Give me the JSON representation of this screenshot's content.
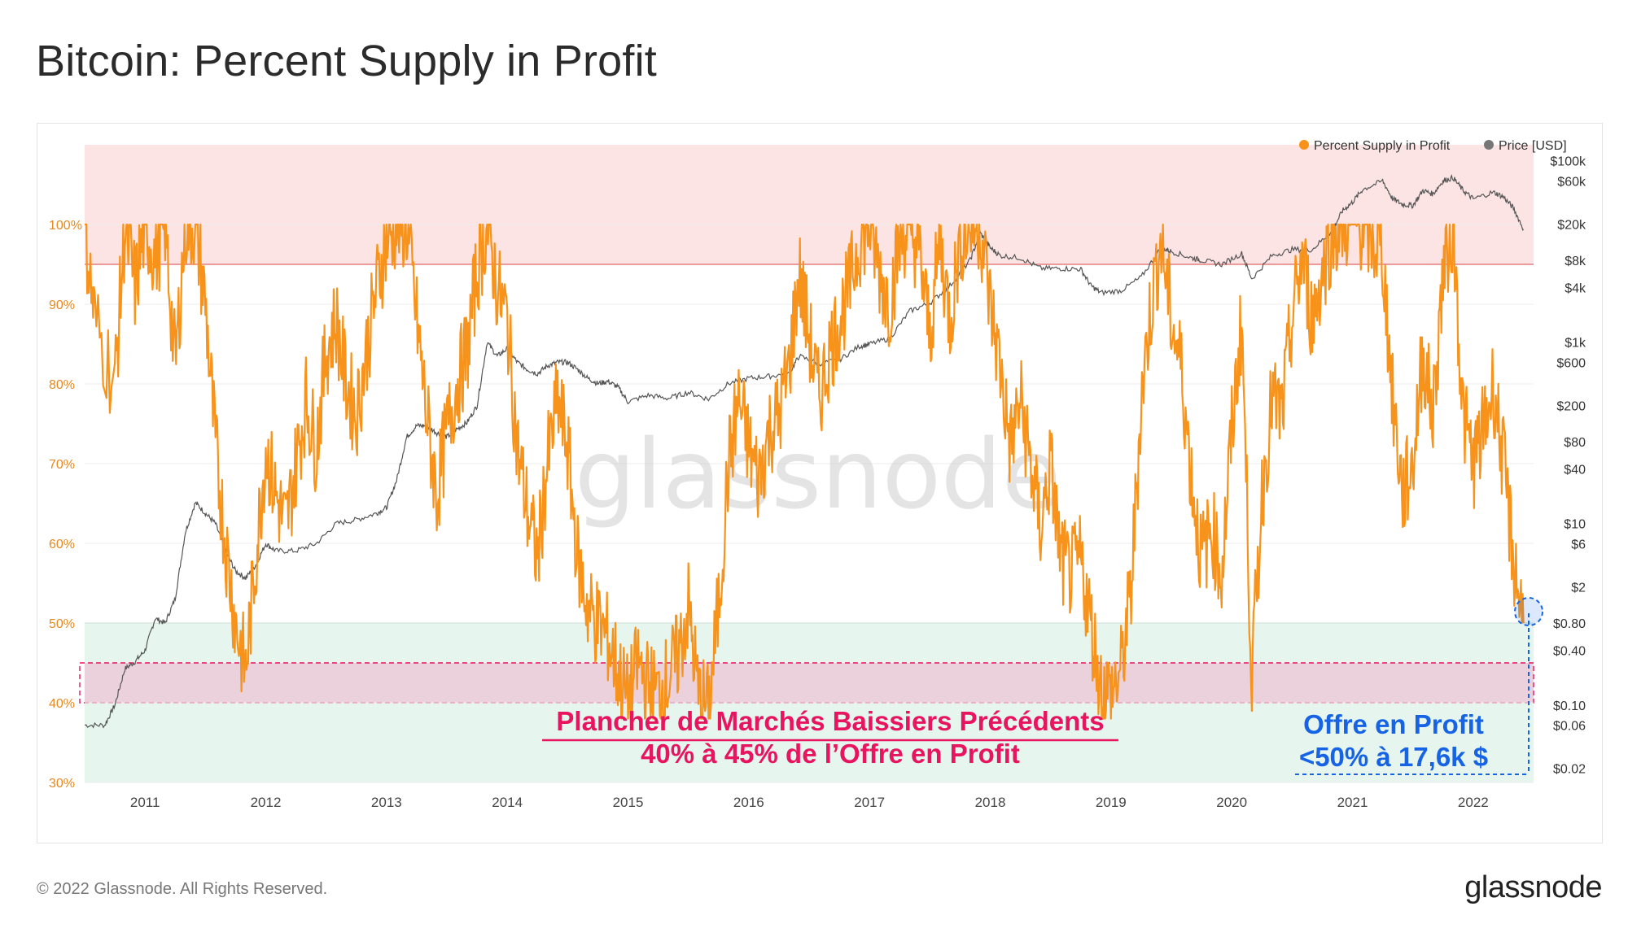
{
  "page": {
    "title": "Bitcoin: Percent Supply in Profit",
    "copyright": "© 2022 Glassnode. All Rights Reserved.",
    "brand": "glassnode",
    "watermark": "glassnode"
  },
  "chart_data": {
    "type": "line",
    "title": "Bitcoin: Percent Supply in Profit",
    "legend": {
      "placement": "top-right"
    },
    "series": [
      {
        "name": "Percent Supply in Profit",
        "color": "#f7931a",
        "axis": "left",
        "points": [
          [
            "2010-07",
            100
          ],
          [
            "2010-08",
            88
          ],
          [
            "2010-10",
            80
          ],
          [
            "2010-11",
            100
          ],
          [
            "2010-12",
            92
          ],
          [
            "2011-01",
            100
          ],
          [
            "2011-02",
            96
          ],
          [
            "2011-03",
            100
          ],
          [
            "2011-04",
            82
          ],
          [
            "2011-05",
            100
          ],
          [
            "2011-06",
            100
          ],
          [
            "2011-07",
            90
          ],
          [
            "2011-08",
            72
          ],
          [
            "2011-09",
            60
          ],
          [
            "2011-10",
            50
          ],
          [
            "2011-11",
            44
          ],
          [
            "2011-12",
            58
          ],
          [
            "2012-01",
            72
          ],
          [
            "2012-02",
            66
          ],
          [
            "2012-03",
            62
          ],
          [
            "2012-04",
            70
          ],
          [
            "2012-05",
            78
          ],
          [
            "2012-06",
            72
          ],
          [
            "2012-07",
            84
          ],
          [
            "2012-08",
            88
          ],
          [
            "2012-09",
            80
          ],
          [
            "2012-10",
            76
          ],
          [
            "2012-11",
            84
          ],
          [
            "2012-12",
            92
          ],
          [
            "2013-01",
            98
          ],
          [
            "2013-02",
            100
          ],
          [
            "2013-03",
            100
          ],
          [
            "2013-04",
            88
          ],
          [
            "2013-05",
            76
          ],
          [
            "2013-06",
            66
          ],
          [
            "2013-07",
            74
          ],
          [
            "2013-08",
            80
          ],
          [
            "2013-09",
            84
          ],
          [
            "2013-10",
            94
          ],
          [
            "2013-11",
            100
          ],
          [
            "2013-12",
            92
          ],
          [
            "2014-01",
            88
          ],
          [
            "2014-02",
            72
          ],
          [
            "2014-03",
            64
          ],
          [
            "2014-04",
            58
          ],
          [
            "2014-05",
            70
          ],
          [
            "2014-06",
            78
          ],
          [
            "2014-07",
            72
          ],
          [
            "2014-08",
            58
          ],
          [
            "2014-09",
            52
          ],
          [
            "2014-10",
            50
          ],
          [
            "2014-11",
            48
          ],
          [
            "2014-12",
            44
          ],
          [
            "2015-01",
            40
          ],
          [
            "2015-02",
            45
          ],
          [
            "2015-03",
            42
          ],
          [
            "2015-04",
            41
          ],
          [
            "2015-05",
            43
          ],
          [
            "2015-06",
            46
          ],
          [
            "2015-07",
            52
          ],
          [
            "2015-08",
            41
          ],
          [
            "2015-09",
            39
          ],
          [
            "2015-10",
            52
          ],
          [
            "2015-11",
            70
          ],
          [
            "2015-12",
            78
          ],
          [
            "2016-01",
            72
          ],
          [
            "2016-02",
            68
          ],
          [
            "2016-03",
            74
          ],
          [
            "2016-04",
            76
          ],
          [
            "2016-05",
            82
          ],
          [
            "2016-06",
            94
          ],
          [
            "2016-07",
            86
          ],
          [
            "2016-08",
            78
          ],
          [
            "2016-09",
            84
          ],
          [
            "2016-10",
            88
          ],
          [
            "2016-11",
            92
          ],
          [
            "2016-12",
            98
          ],
          [
            "2017-01",
            100
          ],
          [
            "2017-02",
            94
          ],
          [
            "2017-03",
            90
          ],
          [
            "2017-04",
            98
          ],
          [
            "2017-05",
            100
          ],
          [
            "2017-06",
            96
          ],
          [
            "2017-07",
            86
          ],
          [
            "2017-08",
            98
          ],
          [
            "2017-09",
            88
          ],
          [
            "2017-10",
            98
          ],
          [
            "2017-11",
            100
          ],
          [
            "2017-12",
            100
          ],
          [
            "2018-01",
            90
          ],
          [
            "2018-02",
            82
          ],
          [
            "2018-03",
            72
          ],
          [
            "2018-04",
            78
          ],
          [
            "2018-05",
            70
          ],
          [
            "2018-06",
            62
          ],
          [
            "2018-07",
            70
          ],
          [
            "2018-08",
            58
          ],
          [
            "2018-09",
            56
          ],
          [
            "2018-10",
            58
          ],
          [
            "2018-11",
            50
          ],
          [
            "2018-12",
            42
          ],
          [
            "2019-01",
            41
          ],
          [
            "2019-02",
            44
          ],
          [
            "2019-03",
            54
          ],
          [
            "2019-04",
            78
          ],
          [
            "2019-05",
            90
          ],
          [
            "2019-06",
            98
          ],
          [
            "2019-07",
            88
          ],
          [
            "2019-08",
            82
          ],
          [
            "2019-09",
            68
          ],
          [
            "2019-10",
            58
          ],
          [
            "2019-11",
            62
          ],
          [
            "2019-12",
            56
          ],
          [
            "2020-01",
            74
          ],
          [
            "2020-02",
            88
          ],
          [
            "2020-03",
            43
          ],
          [
            "2020-04",
            66
          ],
          [
            "2020-05",
            78
          ],
          [
            "2020-06",
            76
          ],
          [
            "2020-07",
            88
          ],
          [
            "2020-08",
            96
          ],
          [
            "2020-09",
            88
          ],
          [
            "2020-10",
            94
          ],
          [
            "2020-11",
            99
          ],
          [
            "2020-12",
            100
          ],
          [
            "2021-01",
            100
          ],
          [
            "2021-02",
            100
          ],
          [
            "2021-03",
            98
          ],
          [
            "2021-04",
            96
          ],
          [
            "2021-05",
            78
          ],
          [
            "2021-06",
            66
          ],
          [
            "2021-07",
            70
          ],
          [
            "2021-08",
            84
          ],
          [
            "2021-09",
            76
          ],
          [
            "2021-10",
            94
          ],
          [
            "2021-11",
            100
          ],
          [
            "2021-12",
            76
          ],
          [
            "2022-01",
            70
          ],
          [
            "2022-02",
            74
          ],
          [
            "2022-03",
            80
          ],
          [
            "2022-04",
            70
          ],
          [
            "2022-05",
            58
          ],
          [
            "2022-06",
            50
          ]
        ]
      },
      {
        "name": "Price [USD]",
        "color": "#555555",
        "axis": "right",
        "points": [
          [
            "2010-07",
            0.06
          ],
          [
            "2010-09",
            0.06
          ],
          [
            "2010-10",
            0.1
          ],
          [
            "2010-11",
            0.25
          ],
          [
            "2010-12",
            0.3
          ],
          [
            "2011-01",
            0.4
          ],
          [
            "2011-02",
            0.9
          ],
          [
            "2011-03",
            0.8
          ],
          [
            "2011-04",
            1.5
          ],
          [
            "2011-05",
            8
          ],
          [
            "2011-06",
            17
          ],
          [
            "2011-07",
            13
          ],
          [
            "2011-08",
            10
          ],
          [
            "2011-09",
            5
          ],
          [
            "2011-10",
            3
          ],
          [
            "2011-11",
            2.5
          ],
          [
            "2011-12",
            3.5
          ],
          [
            "2012-01",
            6
          ],
          [
            "2012-02",
            5
          ],
          [
            "2012-04",
            5
          ],
          [
            "2012-06",
            6
          ],
          [
            "2012-08",
            10
          ],
          [
            "2012-10",
            11
          ],
          [
            "2012-12",
            13
          ],
          [
            "2013-01",
            15
          ],
          [
            "2013-02",
            30
          ],
          [
            "2013-03",
            90
          ],
          [
            "2013-04",
            120
          ],
          [
            "2013-05",
            120
          ],
          [
            "2013-06",
            100
          ],
          [
            "2013-07",
            90
          ],
          [
            "2013-08",
            110
          ],
          [
            "2013-09",
            130
          ],
          [
            "2013-10",
            200
          ],
          [
            "2013-11",
            1000
          ],
          [
            "2013-12",
            700
          ],
          [
            "2014-01",
            850
          ],
          [
            "2014-02",
            600
          ],
          [
            "2014-03",
            500
          ],
          [
            "2014-04",
            450
          ],
          [
            "2014-05",
            550
          ],
          [
            "2014-06",
            600
          ],
          [
            "2014-07",
            600
          ],
          [
            "2014-08",
            500
          ],
          [
            "2014-09",
            400
          ],
          [
            "2014-10",
            350
          ],
          [
            "2014-11",
            370
          ],
          [
            "2014-12",
            320
          ],
          [
            "2015-01",
            220
          ],
          [
            "2015-03",
            260
          ],
          [
            "2015-05",
            240
          ],
          [
            "2015-07",
            280
          ],
          [
            "2015-09",
            235
          ],
          [
            "2015-11",
            350
          ],
          [
            "2016-01",
            400
          ],
          [
            "2016-03",
            420
          ],
          [
            "2016-05",
            450
          ],
          [
            "2016-06",
            700
          ],
          [
            "2016-08",
            580
          ],
          [
            "2016-10",
            640
          ],
          [
            "2016-12",
            900
          ],
          [
            "2017-01",
            950
          ],
          [
            "2017-03",
            1100
          ],
          [
            "2017-05",
            2200
          ],
          [
            "2017-07",
            2700
          ],
          [
            "2017-09",
            4200
          ],
          [
            "2017-11",
            8000
          ],
          [
            "2017-12",
            16000
          ],
          [
            "2018-01",
            11000
          ],
          [
            "2018-02",
            9000
          ],
          [
            "2018-04",
            8500
          ],
          [
            "2018-06",
            6500
          ],
          [
            "2018-08",
            6500
          ],
          [
            "2018-10",
            6400
          ],
          [
            "2018-11",
            4200
          ],
          [
            "2018-12",
            3500
          ],
          [
            "2019-02",
            3700
          ],
          [
            "2019-04",
            5200
          ],
          [
            "2019-06",
            11000
          ],
          [
            "2019-07",
            10000
          ],
          [
            "2019-09",
            8500
          ],
          [
            "2019-10",
            8000
          ],
          [
            "2019-12",
            7200
          ],
          [
            "2020-02",
            9500
          ],
          [
            "2020-03",
            5000
          ],
          [
            "2020-05",
            9000
          ],
          [
            "2020-07",
            10500
          ],
          [
            "2020-09",
            10500
          ],
          [
            "2020-11",
            17000
          ],
          [
            "2020-12",
            28000
          ],
          [
            "2021-01",
            35000
          ],
          [
            "2021-02",
            48000
          ],
          [
            "2021-04",
            60000
          ],
          [
            "2021-05",
            38000
          ],
          [
            "2021-06",
            33000
          ],
          [
            "2021-07",
            32000
          ],
          [
            "2021-08",
            47000
          ],
          [
            "2021-09",
            43000
          ],
          [
            "2021-10",
            60000
          ],
          [
            "2021-11",
            65000
          ],
          [
            "2021-12",
            47000
          ],
          [
            "2022-01",
            38000
          ],
          [
            "2022-03",
            45000
          ],
          [
            "2022-04",
            40000
          ],
          [
            "2022-05",
            30000
          ],
          [
            "2022-06",
            17600
          ]
        ]
      }
    ],
    "x_ticks": [
      "2011",
      "2012",
      "2013",
      "2014",
      "2015",
      "2016",
      "2017",
      "2018",
      "2019",
      "2020",
      "2021",
      "2022"
    ],
    "xlim": [
      "2010-07",
      "2022-07"
    ],
    "y_left": {
      "ticks": [
        "30%",
        "40%",
        "50%",
        "60%",
        "70%",
        "80%",
        "90%",
        "100%"
      ],
      "ylim": [
        30,
        110
      ]
    },
    "y_right": {
      "scale": "log",
      "ticks": [
        "$100k",
        "$60k",
        "$20k",
        "$8k",
        "$4k",
        "$1k",
        "$600",
        "$200",
        "$80",
        "$40",
        "$10",
        "$6",
        "$2",
        "$0.80",
        "$0.40",
        "$0.10",
        "$0.06",
        "$0.02"
      ],
      "tick_values": [
        100000,
        60000,
        20000,
        8000,
        4000,
        1000,
        600,
        200,
        80,
        40,
        10,
        6,
        2,
        0.8,
        0.4,
        0.1,
        0.06,
        0.02
      ]
    },
    "bands": [
      {
        "from": 95,
        "to": 110,
        "color": "#fde4e4"
      },
      {
        "from": 30,
        "to": 50,
        "color": "#e6f6ef"
      },
      {
        "from": 40,
        "to": 45,
        "color": "#ead1dc"
      }
    ],
    "grid": true,
    "annotations": {
      "pink_line1": "Plancher de Marchés Baissiers Précédents",
      "pink_line2": "40% à 45% de l’Offre en Profit",
      "blue_line1": "Offre en Profit",
      "blue_line2": "<50% à 17,6k $"
    }
  }
}
